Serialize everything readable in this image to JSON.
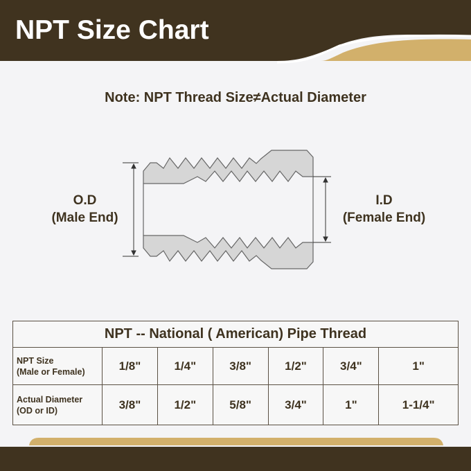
{
  "header": {
    "title": "NPT Size Chart",
    "colors": {
      "brown": "#40331f",
      "gold": "#d2b06b"
    }
  },
  "note": "Note: NPT Thread Size≠Actual Diameter",
  "diagram": {
    "od_label": "O.D",
    "od_sub": "(Male End)",
    "id_label": "I.D",
    "id_sub": "(Female End)"
  },
  "table": {
    "caption": "NPT -- National ( American) Pipe Thread",
    "rows": [
      {
        "header": [
          "NPT Size",
          "(Male or Female)"
        ],
        "values": [
          "1/8\"",
          "1/4\"",
          "3/8\"",
          "1/2\"",
          "3/4\"",
          "1\""
        ]
      },
      {
        "header": [
          "Actual Diameter",
          "(OD or ID)"
        ],
        "values": [
          "3/8\"",
          "1/2\"",
          "5/8\"",
          "3/4\"",
          "1\"",
          "1-1/4\""
        ]
      }
    ]
  }
}
